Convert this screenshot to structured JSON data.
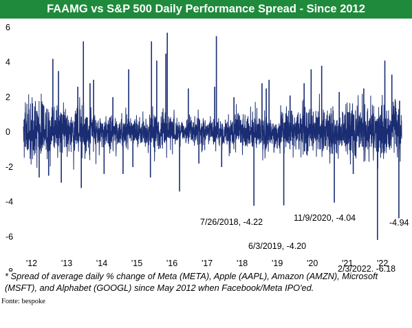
{
  "chart_data": {
    "type": "line",
    "title": "FAAMG vs S&P 500 Daily Performance Spread - Since 2012",
    "xlabel": "",
    "ylabel": "",
    "ylim": [
      -8,
      6
    ],
    "y_ticks": [
      6,
      4,
      2,
      0,
      -2,
      -4,
      -6,
      -8
    ],
    "x_ticks": [
      "'12",
      "'13",
      "'14",
      "'15",
      "'16",
      "'17",
      "'18",
      "'19",
      "'20",
      "'21",
      "'22"
    ],
    "xlim_years": [
      2012.0,
      2022.78
    ],
    "grid": false,
    "legend": "none",
    "series": [
      {
        "color": "#1a2d73",
        "note": "daily series; notable extremes listed below",
        "points": [
          {
            "x": 2012.38,
            "y": 1.2
          },
          {
            "x": 2012.45,
            "y": -2.6
          },
          {
            "x": 2012.55,
            "y": 1.6
          },
          {
            "x": 2012.72,
            "y": -2.5
          },
          {
            "x": 2012.84,
            "y": 4.2
          },
          {
            "x": 2013.0,
            "y": 3.5
          },
          {
            "x": 2013.08,
            "y": -2.9
          },
          {
            "x": 2013.55,
            "y": 2.6
          },
          {
            "x": 2013.65,
            "y": -3.2
          },
          {
            "x": 2013.71,
            "y": 5.2
          },
          {
            "x": 2013.9,
            "y": 2.8
          },
          {
            "x": 2014.0,
            "y": 3.0
          },
          {
            "x": 2014.3,
            "y": -2.4
          },
          {
            "x": 2014.55,
            "y": 2.0
          },
          {
            "x": 2014.84,
            "y": -2.4
          },
          {
            "x": 2015.0,
            "y": 3.6
          },
          {
            "x": 2015.12,
            "y": -2.0
          },
          {
            "x": 2015.62,
            "y": -2.6
          },
          {
            "x": 2015.65,
            "y": 5.2
          },
          {
            "x": 2015.8,
            "y": 4.1
          },
          {
            "x": 2016.06,
            "y": 4.5
          },
          {
            "x": 2016.1,
            "y": 5.7
          },
          {
            "x": 2016.45,
            "y": -3.4
          },
          {
            "x": 2016.7,
            "y": 2.5
          },
          {
            "x": 2017.0,
            "y": -1.8
          },
          {
            "x": 2017.45,
            "y": 2.6
          },
          {
            "x": 2017.5,
            "y": 5.5
          },
          {
            "x": 2017.65,
            "y": -2.0
          },
          {
            "x": 2018.0,
            "y": 2.0
          },
          {
            "x": 2018.57,
            "y": -4.22
          },
          {
            "x": 2018.8,
            "y": 2.8
          },
          {
            "x": 2018.92,
            "y": 2.5
          },
          {
            "x": 2019.0,
            "y": 3.0
          },
          {
            "x": 2019.42,
            "y": -4.2
          },
          {
            "x": 2019.6,
            "y": 2.1
          },
          {
            "x": 2020.0,
            "y": 2.8
          },
          {
            "x": 2020.2,
            "y": 3.6
          },
          {
            "x": 2020.5,
            "y": 3.8
          },
          {
            "x": 2020.86,
            "y": -4.04
          },
          {
            "x": 2021.0,
            "y": 2.3
          },
          {
            "x": 2021.4,
            "y": -2.4
          },
          {
            "x": 2021.7,
            "y": 2.5
          },
          {
            "x": 2022.09,
            "y": -6.18
          },
          {
            "x": 2022.3,
            "y": 4.1
          },
          {
            "x": 2022.5,
            "y": 3.3
          },
          {
            "x": 2022.7,
            "y": -4.94
          },
          {
            "x": 2022.72,
            "y": 1.8
          }
        ]
      }
    ],
    "annotations": [
      {
        "text": "7/26/2018, -4.22",
        "x": 2018.57,
        "y": -4.22
      },
      {
        "text": "6/3/2019, -4.20",
        "x": 2019.42,
        "y": -4.2
      },
      {
        "text": "11/9/2020, -4.04",
        "x": 2020.86,
        "y": -4.04
      },
      {
        "text": "2/3/2022, -6.18",
        "x": 2022.09,
        "y": -6.18
      },
      {
        "text": "-4.94",
        "x": 2022.7,
        "y": -4.94
      }
    ]
  },
  "footnote": "* Spread of average daily % change of Meta (META), Apple (AAPL), Amazon (AMZN), Microsoft (MSFT), and Alphabet (GOOGL) since May 2012 when Facebook/Meta IPO'ed.",
  "source": "Fonte: bespoke"
}
